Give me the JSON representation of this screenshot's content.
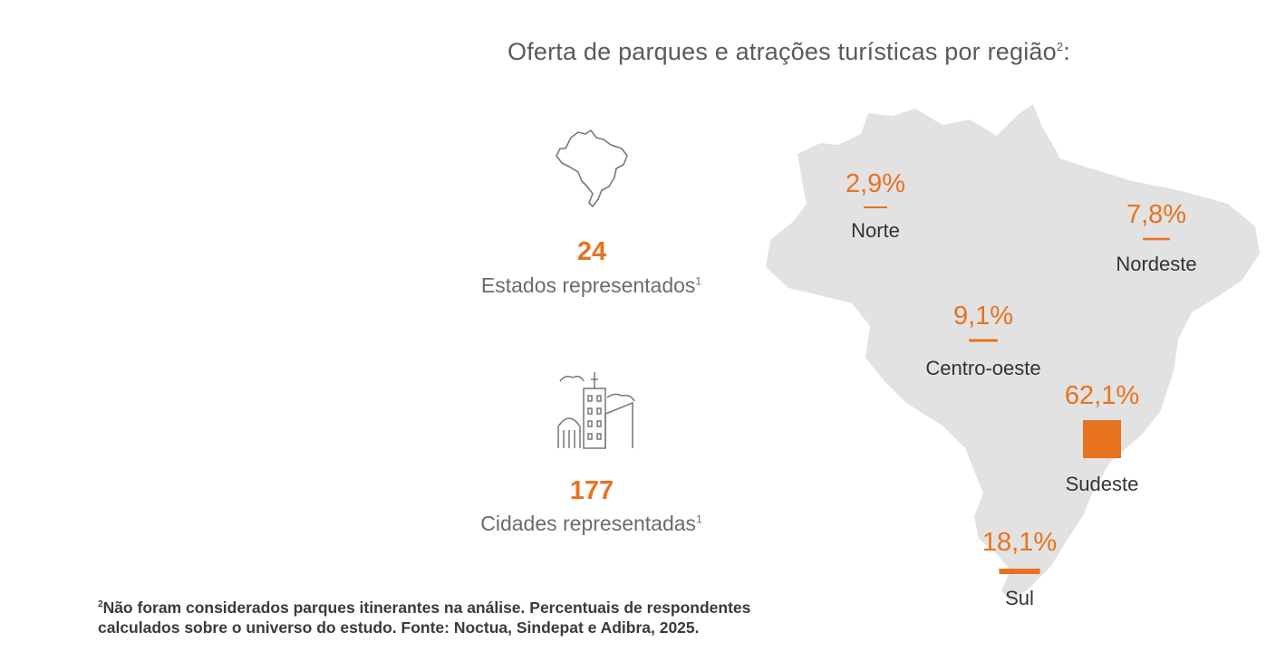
{
  "title": "Oferta de parques e atrações turísticas por região",
  "title_sup": "2",
  "title_suffix": ":",
  "stats": [
    {
      "icon": "brazil-map-icon",
      "value": "24",
      "label": "Estados representados",
      "sup": "1"
    },
    {
      "icon": "city-buildings-icon",
      "value": "177",
      "label": "Cidades representadas",
      "sup": "1"
    }
  ],
  "footnote": {
    "sup": "2",
    "line1": "Não foram considerados parques itinerantes na análise. Percentuais de respondentes",
    "line2": "calculados sobre o universo do estudo. Fonte: Noctua, Sindepat e Adibra, 2025."
  },
  "colors": {
    "accent": "#e8731f",
    "map": "#e2e2e2",
    "text": "#5a5a5a"
  },
  "chart_data": {
    "type": "bar",
    "title": "Oferta de parques e atrações turísticas por região",
    "categories": [
      "Norte",
      "Nordeste",
      "Centro-oeste",
      "Sudeste",
      "Sul"
    ],
    "values": [
      2.9,
      7.8,
      9.1,
      62.1,
      18.1
    ],
    "value_labels": [
      "2,9%",
      "7,8%",
      "9,1%",
      "62,1%",
      "18,1%"
    ],
    "unit": "%"
  }
}
